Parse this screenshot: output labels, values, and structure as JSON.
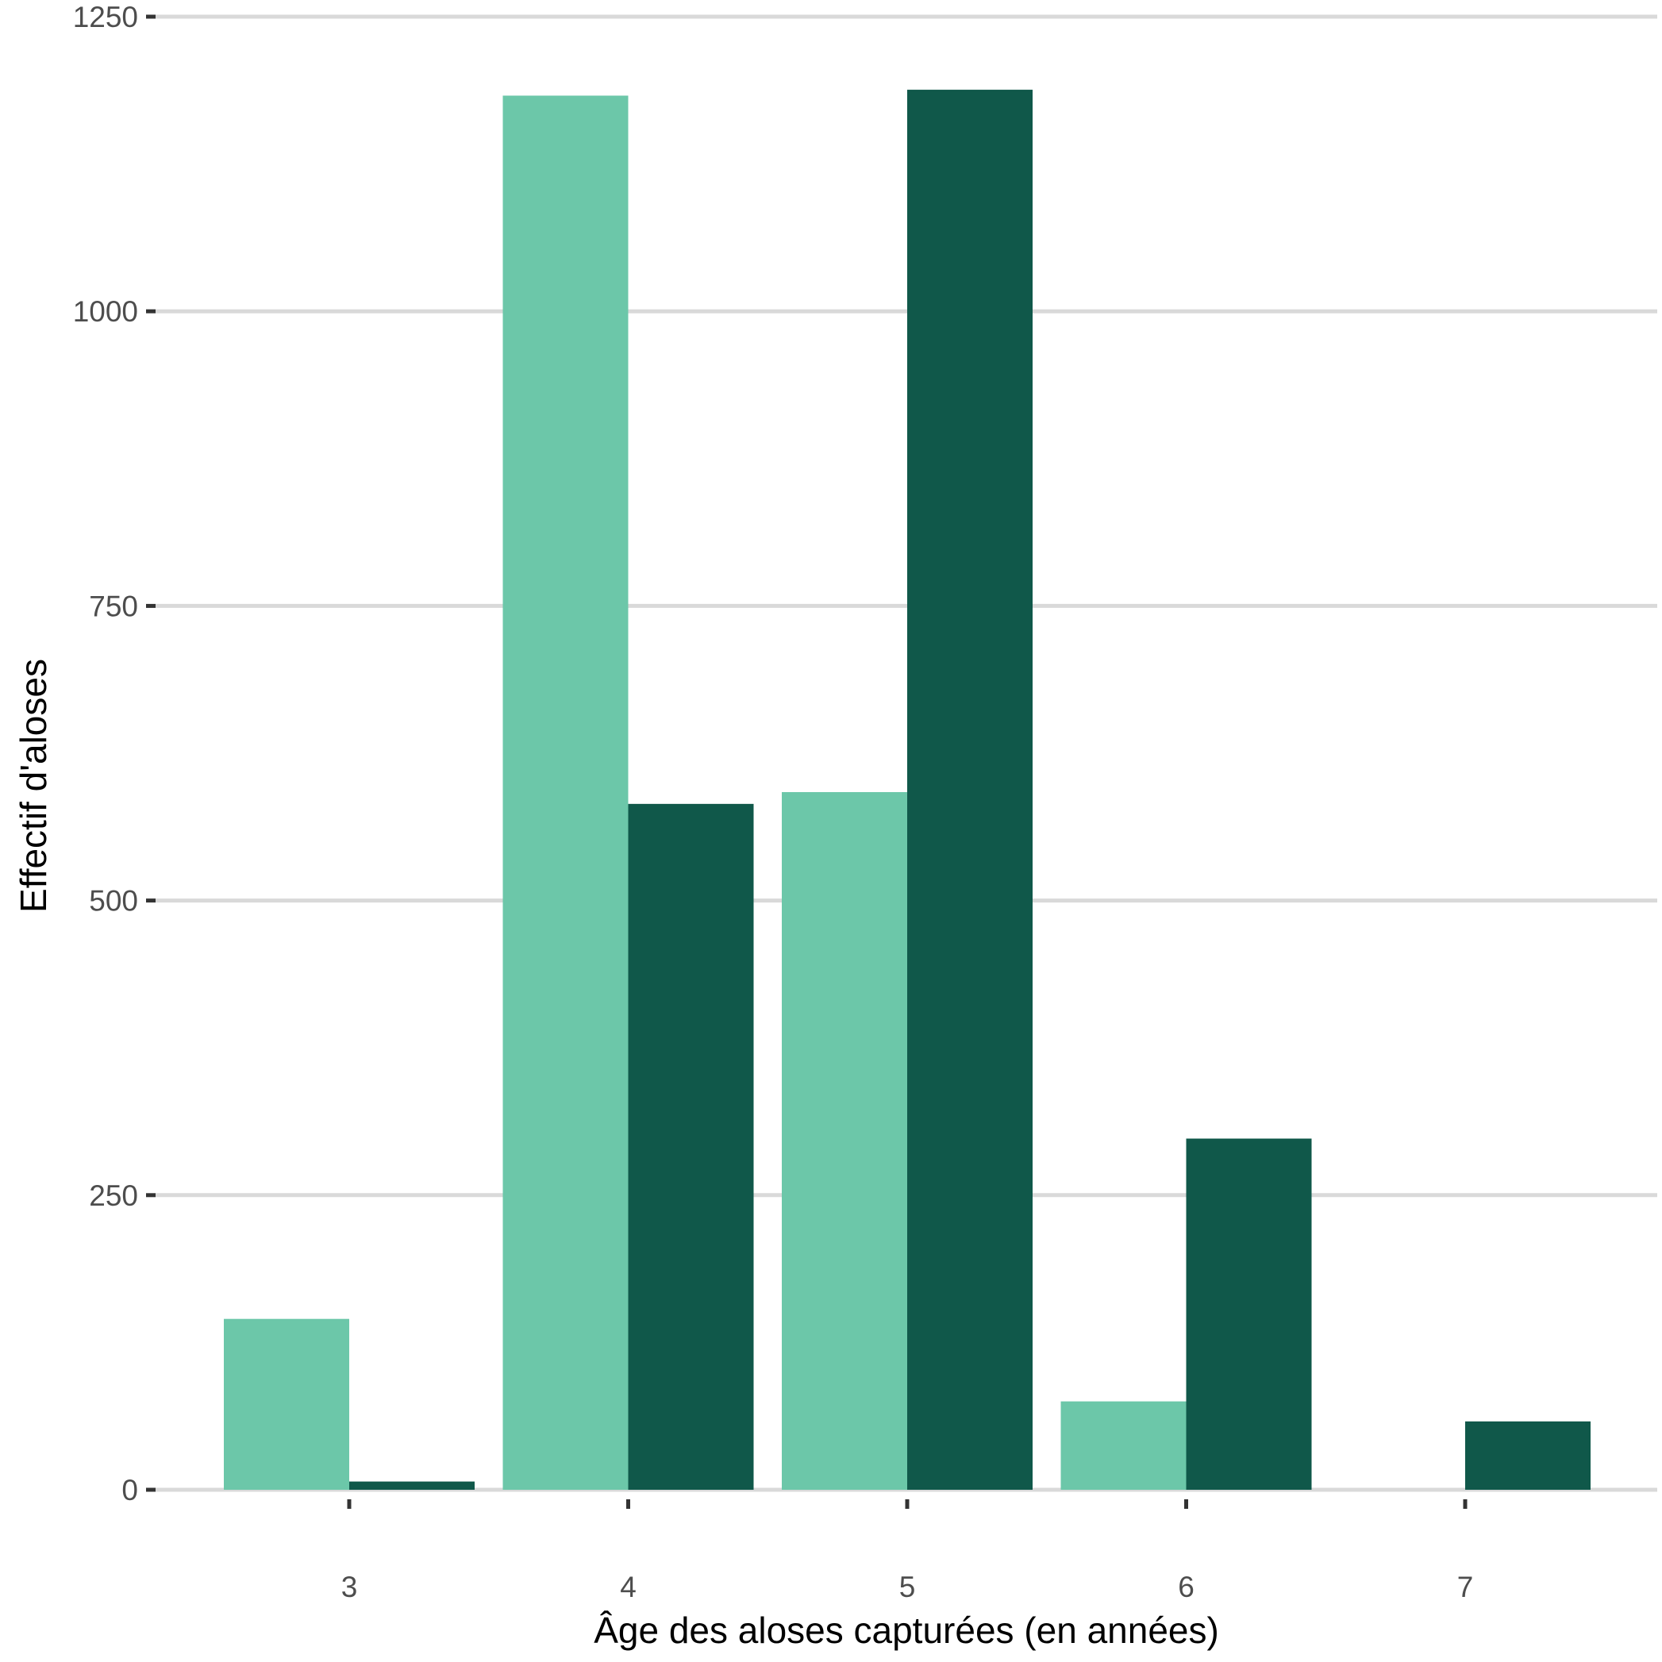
{
  "chart_data": {
    "type": "bar",
    "layout": "grouped",
    "categories": [
      "3",
      "4",
      "5",
      "6",
      "7"
    ],
    "series": [
      {
        "color": "#6cc7a9",
        "values": [
          145,
          1183,
          592,
          75,
          0
        ]
      },
      {
        "color": "#10584a",
        "values": [
          7,
          582,
          1188,
          298,
          58
        ]
      }
    ],
    "title": "",
    "xlabel": "Âge des aloses capturées (en années)",
    "ylabel": "Effectif d'aloses",
    "ylim": [
      0,
      1250
    ],
    "yticks": [
      0,
      250,
      500,
      750,
      1000,
      1250
    ],
    "yticklabels": [
      "0",
      "250",
      "500",
      "750",
      "1000",
      "1250"
    ],
    "grid": "horizontal major",
    "legend": "none",
    "background": "#ffffff"
  }
}
